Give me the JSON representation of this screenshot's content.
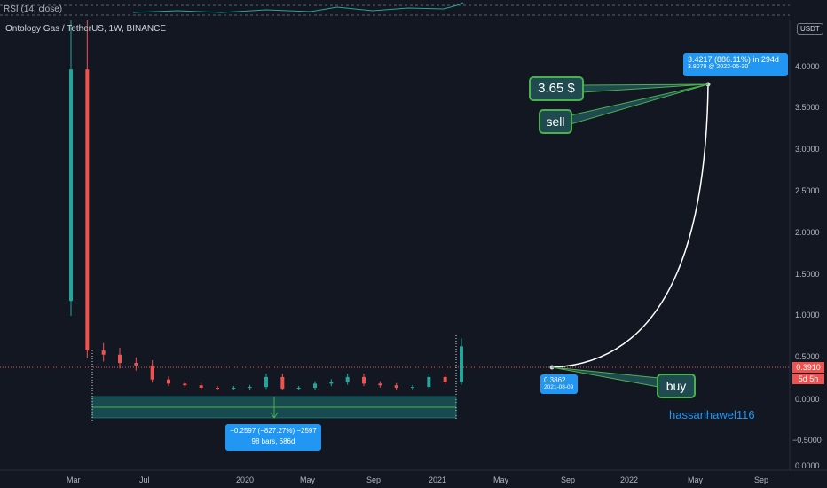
{
  "rsi": {
    "label": "RSI (14, close)"
  },
  "header": {
    "symbol_title": "Ontology Gas / TetherUS, 1W, BINANCE",
    "currency": "USDT"
  },
  "price_scale": {
    "ticks": [
      "4.0000",
      "3.5000",
      "3.0000",
      "2.5000",
      "2.0000",
      "1.5000",
      "1.0000",
      "0.5000",
      "0.0000",
      "−0.5000",
      "0.0000"
    ],
    "current_price": "0.3910",
    "countdown": "5d 5h"
  },
  "time_axis": {
    "ticks": [
      "Mar",
      "Jul",
      "2020",
      "May",
      "Sep",
      "2021",
      "May",
      "Sep",
      "2022",
      "May",
      "Sep"
    ]
  },
  "annotations": {
    "measure_line1": "−0.2597 (−827.27%) −2597",
    "measure_line2": "98 bars, 686d",
    "target_line1": "3.4217 (886.11%) in 294d",
    "target_line2": "3.8079 @ 2022-05-30",
    "buy_price": "0.3862",
    "buy_date": "2021-08-09",
    "note_price": "3.65 $",
    "note_sell": "sell",
    "note_buy": "buy",
    "author": "hassanhawel116"
  },
  "colors": {
    "up": "#26a69a",
    "down": "#ef5350",
    "background": "#131722",
    "accent": "#2196f3",
    "note_border": "#4caf50"
  },
  "chart_data": {
    "type": "candlestick",
    "title": "Ontology Gas / TetherUS, 1W, BINANCE",
    "y_unit": "USDT",
    "ylim": [
      -0.75,
      4.5
    ],
    "grid": false,
    "series": [
      {
        "name": "",
        "x": [
          "2019-02",
          "2019-03",
          "2019-04",
          "2019-05",
          "2019-06",
          "2019-07",
          "2019-08",
          "2019-09",
          "2019-10",
          "2019-11",
          "2019-12",
          "2020-01",
          "2020-02",
          "2020-03",
          "2020-04",
          "2020-05",
          "2020-06",
          "2020-07",
          "2020-08",
          "2020-09",
          "2020-10",
          "2020-11",
          "2020-12",
          "2021-01",
          "2021-02"
        ],
        "close": [
          4.0,
          0.6,
          0.55,
          0.45,
          0.42,
          0.25,
          0.2,
          0.18,
          0.15,
          0.14,
          0.15,
          0.16,
          0.28,
          0.14,
          0.15,
          0.2,
          0.22,
          0.28,
          0.2,
          0.18,
          0.15,
          0.16,
          0.28,
          0.22,
          0.65
        ]
      }
    ],
    "projection": {
      "from": {
        "date": "2021-08-09",
        "price": 0.3862
      },
      "to": {
        "date": "2022-05-30",
        "price": 3.8079
      },
      "change": "3.4217 (886.11%) in 294d"
    },
    "measure": {
      "change": "−0.2597 (−827.27%) −2597",
      "bars": "98 bars, 686d"
    }
  }
}
